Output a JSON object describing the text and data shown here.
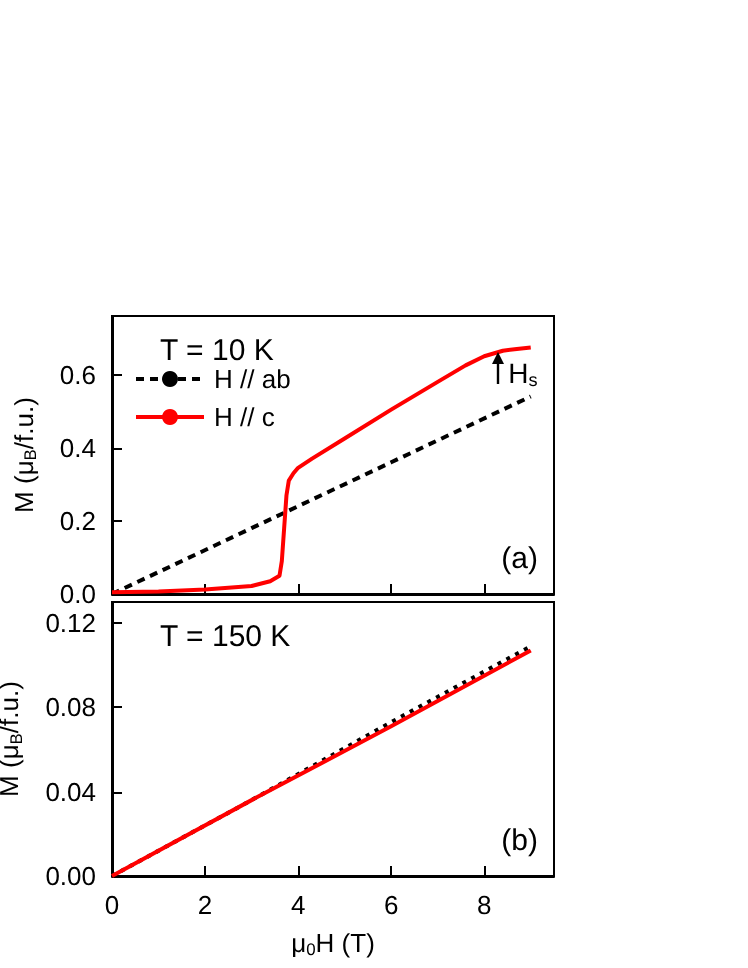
{
  "chart_data": [
    {
      "type": "line",
      "ylabel": "M (μ$_{B}$/f.u.)",
      "annotations": [
        "T = 10 K",
        "(a)",
        {
          "text": "H$_{s}$",
          "x": 8.3,
          "y": 0.66
        }
      ],
      "legend": "top left",
      "marker": "none",
      "grid": false,
      "tick_labels": "y",
      "xlim": [
        0,
        9.5
      ],
      "xticks": [
        0,
        2,
        4,
        6,
        8
      ],
      "ylim": [
        0,
        0.76
      ],
      "yticks": [
        {
          "value": 0,
          "label": "0.0"
        },
        {
          "value": 0.2,
          "label": "0.2"
        },
        {
          "value": 0.4,
          "label": "0.4"
        },
        {
          "value": 0.6,
          "label": "0.6"
        }
      ],
      "series": [
        {
          "name": "H // ab",
          "color": "#000000",
          "line_style": "dashed",
          "x": [
            0,
            3,
            6,
            9
          ],
          "values": [
            0,
            0.18,
            0.36,
            0.54
          ]
        },
        {
          "name": "H // c",
          "color": "#ff0000",
          "line_style": "solid",
          "x": [
            0,
            1,
            2,
            3,
            3.4,
            3.6,
            3.65,
            3.7,
            3.75,
            3.8,
            3.9,
            4.0,
            4.3,
            5,
            6,
            7,
            7.6,
            8,
            8.4,
            8.7,
            9
          ],
          "values": [
            0.005,
            0.007,
            0.012,
            0.022,
            0.035,
            0.05,
            0.09,
            0.18,
            0.27,
            0.31,
            0.33,
            0.345,
            0.37,
            0.425,
            0.504,
            0.58,
            0.625,
            0.65,
            0.665,
            0.67,
            0.674
          ]
        }
      ]
    },
    {
      "type": "line",
      "xlabel": "μ$_{0}$H (T)",
      "ylabel": "M (μ$_{B}$/f.u.)",
      "annotations": [
        "T = 150 K",
        "(b)"
      ],
      "legend": false,
      "marker": "none",
      "grid": false,
      "xlim": [
        0,
        9.5
      ],
      "xticks": [
        0,
        2,
        4,
        6,
        8
      ],
      "ylim": [
        0,
        0.13
      ],
      "yticks": [
        {
          "value": 0,
          "label": "0.00"
        },
        {
          "value": 0.04,
          "label": "0.04"
        },
        {
          "value": 0.08,
          "label": "0.08"
        },
        {
          "value": 0.12,
          "label": "0.12"
        }
      ],
      "series": [
        {
          "color": "#000000",
          "line_style": "dotted",
          "x": [
            0,
            3,
            6,
            9
          ],
          "values": [
            0,
            0.036,
            0.073,
            0.109
          ]
        },
        {
          "color": "#ff0000",
          "line_style": "solid",
          "x": [
            0,
            3,
            6,
            9
          ],
          "values": [
            0,
            0.036,
            0.071,
            0.107
          ]
        }
      ]
    }
  ]
}
